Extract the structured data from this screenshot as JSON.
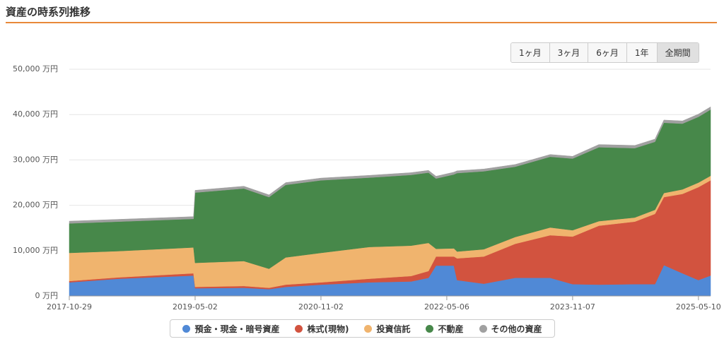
{
  "title": "資産の時系列推移",
  "controls": {
    "buttons": [
      "1ヶ月",
      "3ヶ月",
      "6ヶ月",
      "1年",
      "全期間"
    ]
  },
  "chart_data": {
    "type": "area",
    "stacked": true,
    "grid": true,
    "legend": "bottom",
    "x": [
      "2017-10-29",
      "2018-06-01",
      "2019-04-25",
      "2019-05-02",
      "2019-12-01",
      "2020-03-20",
      "2020-06-01",
      "2020-11-02",
      "2021-06-01",
      "2021-12-01",
      "2022-02-15",
      "2022-03-20",
      "2022-06-06",
      "2022-06-20",
      "2022-10-15",
      "2023-03-01",
      "2023-08-01",
      "2023-11-07",
      "2024-03-01",
      "2024-08-05",
      "2024-11-01",
      "2024-12-10",
      "2025-03-01",
      "2025-05-10",
      "2025-07-02"
    ],
    "series": [
      {
        "name": "預金・現金・暗号資産",
        "color": "#5089d6",
        "values": [
          3000,
          3800,
          4500,
          1700,
          1800,
          1500,
          2000,
          2500,
          3000,
          3200,
          4000,
          6700,
          6700,
          3500,
          2700,
          4000,
          4000,
          2600,
          2500,
          2600,
          2600,
          6800,
          5000,
          3500,
          4500
        ]
      },
      {
        "name": "株式(現物)",
        "color": "#d2533f",
        "values": [
          300,
          300,
          500,
          300,
          400,
          300,
          500,
          500,
          800,
          1200,
          1500,
          2000,
          2000,
          4800,
          6000,
          7500,
          9400,
          10500,
          13000,
          13800,
          15500,
          15000,
          17500,
          20500,
          21000
        ]
      },
      {
        "name": "投資信託",
        "color": "#f0b46e",
        "values": [
          6200,
          5800,
          5700,
          5300,
          5500,
          4200,
          6000,
          6500,
          7000,
          6700,
          6200,
          1700,
          1800,
          1500,
          1600,
          1500,
          1700,
          1400,
          1000,
          900,
          900,
          900,
          1000,
          1000,
          1000
        ]
      },
      {
        "name": "不動産",
        "color": "#47884a",
        "values": [
          6500,
          6500,
          6300,
          15500,
          16000,
          15800,
          16000,
          16000,
          15300,
          15600,
          15500,
          15500,
          16300,
          17300,
          17200,
          15500,
          15600,
          15800,
          16300,
          15300,
          15000,
          15500,
          14500,
          14500,
          14600
        ]
      },
      {
        "name": "その他の資産",
        "color": "#a0a0a0",
        "values": [
          500,
          500,
          500,
          500,
          500,
          500,
          500,
          500,
          500,
          500,
          500,
          500,
          500,
          500,
          500,
          500,
          500,
          500,
          600,
          600,
          600,
          600,
          600,
          600,
          600
        ]
      }
    ],
    "xlim": [
      "2017-10-29",
      "2025-07-02"
    ],
    "xticks": [
      "2017-10-29",
      "2019-05-02",
      "2020-11-02",
      "2022-05-06",
      "2023-11-07",
      "2025-05-10"
    ],
    "ylim": [
      0,
      50000
    ],
    "yticks": [
      {
        "value": 0,
        "label": "0 万円"
      },
      {
        "value": 10000,
        "label": "10,000 万円"
      },
      {
        "value": 20000,
        "label": "20,000 万円"
      },
      {
        "value": 30000,
        "label": "30,000 万円"
      },
      {
        "value": 40000,
        "label": "40,000 万円"
      },
      {
        "value": 50000,
        "label": "50,000 万円"
      }
    ]
  }
}
